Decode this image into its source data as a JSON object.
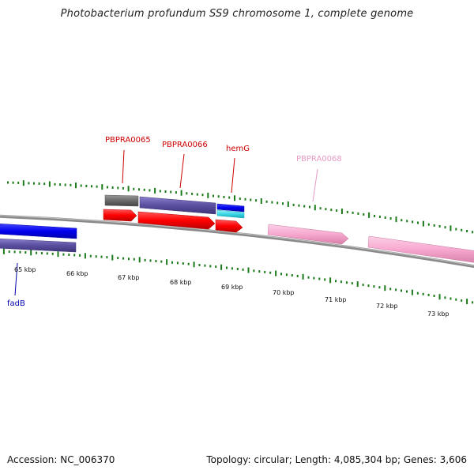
{
  "title": "Photobacterium profundum SS9 chromosome 1, complete genome",
  "footer": {
    "accession": "Accession: NC_006370",
    "topology": "Topology: circular; Length: 4,085,304 bp; Genes: 3,606"
  },
  "colors": {
    "backbone": "#8a8a8a",
    "ticks": "#1a7a1a",
    "gene_red": "#ff0000",
    "gene_blue": "#0000ff",
    "gene_purple": "#5a4fa0",
    "gene_pink": "#f7a8cf",
    "gene_gray": "#6a6a6a",
    "gene_cyan": "#3ad7e6",
    "label_red": "#cc0000",
    "label_blue": "#0000aa",
    "label_pink": "#e89ac4"
  },
  "ruler": {
    "labels": [
      {
        "text": "65 kbp",
        "kbp": 65
      },
      {
        "text": "66 kbp",
        "kbp": 66
      },
      {
        "text": "67 kbp",
        "kbp": 67
      },
      {
        "text": "68 kbp",
        "kbp": 68
      },
      {
        "text": "69 kbp",
        "kbp": 69
      },
      {
        "text": "70 kbp",
        "kbp": 70
      },
      {
        "text": "71 kbp",
        "kbp": 71
      },
      {
        "text": "72 kbp",
        "kbp": 72
      },
      {
        "text": "73 kbp",
        "kbp": 73
      }
    ]
  },
  "genes": [
    {
      "name": "fadB",
      "label_color": "label_blue"
    },
    {
      "name": "PBPRA0065",
      "label_color": "label_red"
    },
    {
      "name": "PBPRA0066",
      "label_color": "label_red"
    },
    {
      "name": "hemG",
      "label_color": "label_red"
    },
    {
      "name": "PBPRA0068",
      "label_color": "label_pink"
    }
  ]
}
